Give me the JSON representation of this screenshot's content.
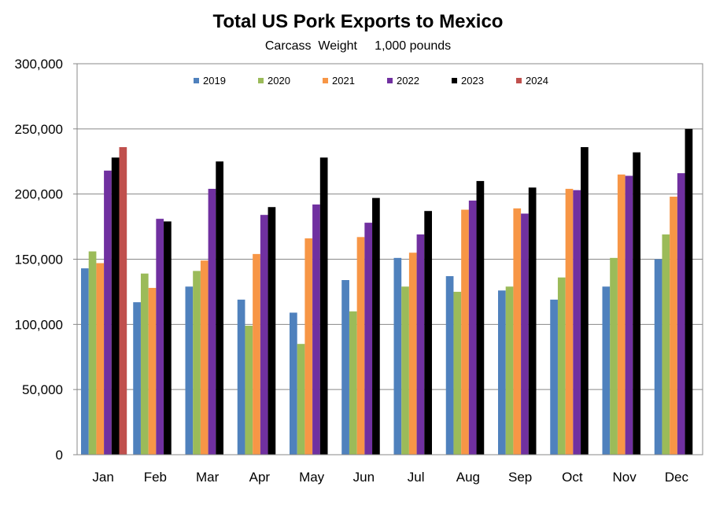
{
  "chart_data": {
    "type": "bar",
    "title": "Total US Pork Exports to Mexico",
    "subtitle": "Carcass  Weight     1,000 pounds",
    "xlabel": "",
    "ylabel": "",
    "ylim": [
      0,
      300000
    ],
    "yticks": [
      0,
      50000,
      100000,
      150000,
      200000,
      250000,
      300000
    ],
    "ytick_labels": [
      "0",
      "50,000",
      "100,000",
      "150,000",
      "200,000",
      "250,000",
      "300,000"
    ],
    "categories": [
      "Jan",
      "Feb",
      "Mar",
      "Apr",
      "May",
      "Jun",
      "Jul",
      "Aug",
      "Sep",
      "Oct",
      "Nov",
      "Dec"
    ],
    "legend_position": "top",
    "grid": "horizontal",
    "series": [
      {
        "name": "2019",
        "color": "#4F81BD",
        "values": [
          143000,
          117000,
          129000,
          119000,
          109000,
          134000,
          151000,
          137000,
          126000,
          119000,
          129000,
          150000
        ]
      },
      {
        "name": "2020",
        "color": "#9BBB59",
        "values": [
          156000,
          139000,
          141000,
          99000,
          85000,
          110000,
          129000,
          125000,
          129000,
          136000,
          151000,
          169000
        ]
      },
      {
        "name": "2021",
        "color": "#F79646",
        "values": [
          147000,
          128000,
          149000,
          154000,
          166000,
          167000,
          155000,
          188000,
          189000,
          204000,
          215000,
          198000
        ]
      },
      {
        "name": "2022",
        "color": "#7030A0",
        "values": [
          218000,
          181000,
          204000,
          184000,
          192000,
          178000,
          169000,
          195000,
          185000,
          203000,
          214000,
          216000
        ]
      },
      {
        "name": "2023",
        "color": "#000000",
        "values": [
          228000,
          179000,
          225000,
          190000,
          228000,
          197000,
          187000,
          210000,
          205000,
          236000,
          232000,
          250000
        ]
      },
      {
        "name": "2024",
        "color": "#C0504D",
        "values": [
          236000,
          null,
          null,
          null,
          null,
          null,
          null,
          null,
          null,
          null,
          null,
          null
        ]
      }
    ]
  }
}
